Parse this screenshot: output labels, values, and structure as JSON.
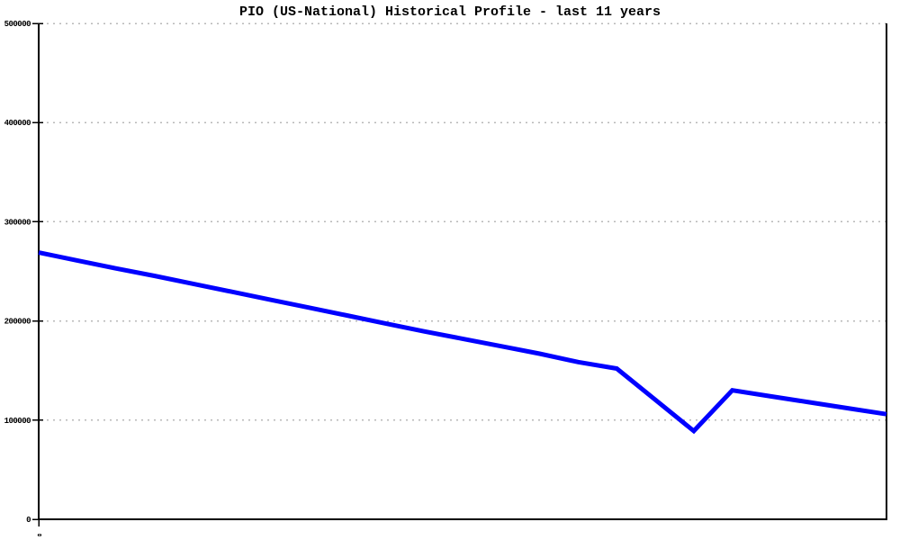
{
  "chart_data": {
    "type": "line",
    "title": "PIO (US-National) Historical Profile - last 11 years",
    "xlabel": "",
    "ylabel": "",
    "ylim": [
      0,
      500000
    ],
    "y_ticks": [
      0,
      100000,
      200000,
      300000,
      400000,
      500000
    ],
    "y_tick_labels": [
      "0",
      "100000",
      "200000",
      "300000",
      "400000",
      "500000"
    ],
    "x_tick_labels_visible": [
      "0"
    ],
    "grid": "dotted-horizontal",
    "legend": "none",
    "series": [
      {
        "name": "PIO (US-National)",
        "color": "#0000ff",
        "x": [
          0,
          1,
          2,
          3,
          4,
          5,
          6,
          7,
          8,
          9,
          10,
          11,
          12,
          13,
          14,
          15,
          16,
          17,
          18,
          19,
          20,
          21,
          22
        ],
        "values": [
          269000,
          261000,
          253000,
          245500,
          237500,
          229500,
          221500,
          213500,
          205500,
          197500,
          189500,
          182000,
          174500,
          167000,
          158500,
          152000,
          120500,
          89000,
          130000,
          124000,
          118000,
          112000,
          106000
        ]
      }
    ]
  },
  "style": {
    "line_color": "#0000ff",
    "grid_color": "#b8b8b8",
    "axis_color": "#000000",
    "background_color": "#ffffff",
    "title_color": "#000000"
  }
}
